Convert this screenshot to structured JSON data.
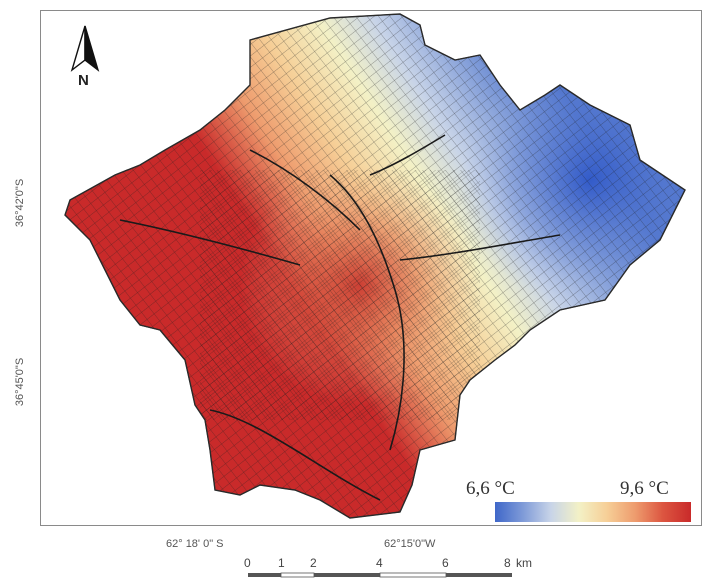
{
  "map": {
    "north_label": "N",
    "north_icon": "north-arrow-icon",
    "latitude_labels": [
      "36°42'0\"S",
      "36°45'0\"S"
    ],
    "longitude_labels": [
      "62° 18' 0\" S",
      "62°15'0\"W"
    ]
  },
  "legend": {
    "min_label": "6,6 °C",
    "max_label": "9,6 °C",
    "min_value": 6.6,
    "max_value": 9.6,
    "colors": [
      "#3f67c9",
      "#7f9bd8",
      "#c8d4e8",
      "#f3f1c6",
      "#f6cf97",
      "#ee9c6e",
      "#dc5540",
      "#c92a2a"
    ]
  },
  "scale_bar": {
    "ticks": [
      "0",
      "1",
      "2",
      "4",
      "6",
      "8"
    ],
    "unit": "km"
  }
}
